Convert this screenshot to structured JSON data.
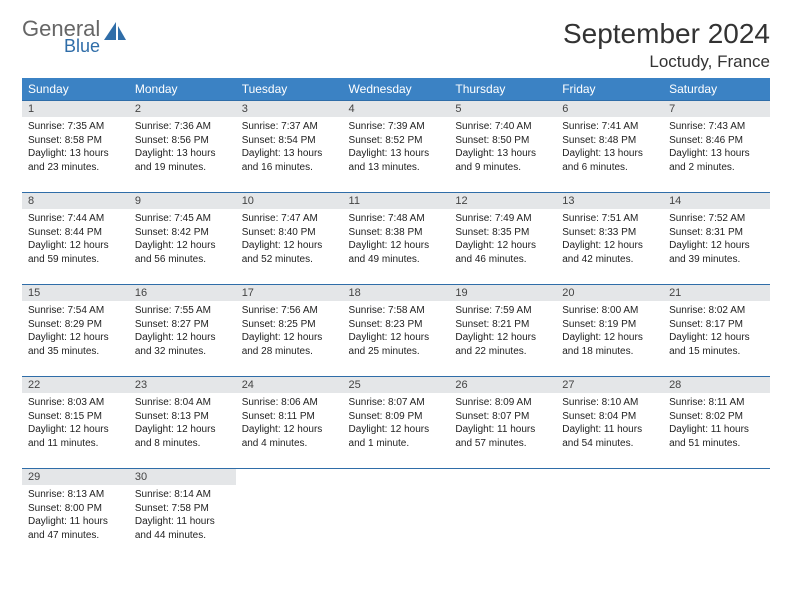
{
  "logo": {
    "word1": "General",
    "word2": "Blue"
  },
  "title": "September 2024",
  "location": "Loctudy, France",
  "colors": {
    "header_bg": "#3b82c4",
    "header_fg": "#ffffff",
    "daynum_bg": "#e4e6e8",
    "border": "#2f6da8",
    "logo_gray": "#666666",
    "logo_blue": "#2f6da8"
  },
  "weekdays": [
    "Sunday",
    "Monday",
    "Tuesday",
    "Wednesday",
    "Thursday",
    "Friday",
    "Saturday"
  ],
  "weeks": [
    [
      {
        "n": "1",
        "sunrise": "Sunrise: 7:35 AM",
        "sunset": "Sunset: 8:58 PM",
        "day1": "Daylight: 13 hours",
        "day2": "and 23 minutes."
      },
      {
        "n": "2",
        "sunrise": "Sunrise: 7:36 AM",
        "sunset": "Sunset: 8:56 PM",
        "day1": "Daylight: 13 hours",
        "day2": "and 19 minutes."
      },
      {
        "n": "3",
        "sunrise": "Sunrise: 7:37 AM",
        "sunset": "Sunset: 8:54 PM",
        "day1": "Daylight: 13 hours",
        "day2": "and 16 minutes."
      },
      {
        "n": "4",
        "sunrise": "Sunrise: 7:39 AM",
        "sunset": "Sunset: 8:52 PM",
        "day1": "Daylight: 13 hours",
        "day2": "and 13 minutes."
      },
      {
        "n": "5",
        "sunrise": "Sunrise: 7:40 AM",
        "sunset": "Sunset: 8:50 PM",
        "day1": "Daylight: 13 hours",
        "day2": "and 9 minutes."
      },
      {
        "n": "6",
        "sunrise": "Sunrise: 7:41 AM",
        "sunset": "Sunset: 8:48 PM",
        "day1": "Daylight: 13 hours",
        "day2": "and 6 minutes."
      },
      {
        "n": "7",
        "sunrise": "Sunrise: 7:43 AM",
        "sunset": "Sunset: 8:46 PM",
        "day1": "Daylight: 13 hours",
        "day2": "and 2 minutes."
      }
    ],
    [
      {
        "n": "8",
        "sunrise": "Sunrise: 7:44 AM",
        "sunset": "Sunset: 8:44 PM",
        "day1": "Daylight: 12 hours",
        "day2": "and 59 minutes."
      },
      {
        "n": "9",
        "sunrise": "Sunrise: 7:45 AM",
        "sunset": "Sunset: 8:42 PM",
        "day1": "Daylight: 12 hours",
        "day2": "and 56 minutes."
      },
      {
        "n": "10",
        "sunrise": "Sunrise: 7:47 AM",
        "sunset": "Sunset: 8:40 PM",
        "day1": "Daylight: 12 hours",
        "day2": "and 52 minutes."
      },
      {
        "n": "11",
        "sunrise": "Sunrise: 7:48 AM",
        "sunset": "Sunset: 8:38 PM",
        "day1": "Daylight: 12 hours",
        "day2": "and 49 minutes."
      },
      {
        "n": "12",
        "sunrise": "Sunrise: 7:49 AM",
        "sunset": "Sunset: 8:35 PM",
        "day1": "Daylight: 12 hours",
        "day2": "and 46 minutes."
      },
      {
        "n": "13",
        "sunrise": "Sunrise: 7:51 AM",
        "sunset": "Sunset: 8:33 PM",
        "day1": "Daylight: 12 hours",
        "day2": "and 42 minutes."
      },
      {
        "n": "14",
        "sunrise": "Sunrise: 7:52 AM",
        "sunset": "Sunset: 8:31 PM",
        "day1": "Daylight: 12 hours",
        "day2": "and 39 minutes."
      }
    ],
    [
      {
        "n": "15",
        "sunrise": "Sunrise: 7:54 AM",
        "sunset": "Sunset: 8:29 PM",
        "day1": "Daylight: 12 hours",
        "day2": "and 35 minutes."
      },
      {
        "n": "16",
        "sunrise": "Sunrise: 7:55 AM",
        "sunset": "Sunset: 8:27 PM",
        "day1": "Daylight: 12 hours",
        "day2": "and 32 minutes."
      },
      {
        "n": "17",
        "sunrise": "Sunrise: 7:56 AM",
        "sunset": "Sunset: 8:25 PM",
        "day1": "Daylight: 12 hours",
        "day2": "and 28 minutes."
      },
      {
        "n": "18",
        "sunrise": "Sunrise: 7:58 AM",
        "sunset": "Sunset: 8:23 PM",
        "day1": "Daylight: 12 hours",
        "day2": "and 25 minutes."
      },
      {
        "n": "19",
        "sunrise": "Sunrise: 7:59 AM",
        "sunset": "Sunset: 8:21 PM",
        "day1": "Daylight: 12 hours",
        "day2": "and 22 minutes."
      },
      {
        "n": "20",
        "sunrise": "Sunrise: 8:00 AM",
        "sunset": "Sunset: 8:19 PM",
        "day1": "Daylight: 12 hours",
        "day2": "and 18 minutes."
      },
      {
        "n": "21",
        "sunrise": "Sunrise: 8:02 AM",
        "sunset": "Sunset: 8:17 PM",
        "day1": "Daylight: 12 hours",
        "day2": "and 15 minutes."
      }
    ],
    [
      {
        "n": "22",
        "sunrise": "Sunrise: 8:03 AM",
        "sunset": "Sunset: 8:15 PM",
        "day1": "Daylight: 12 hours",
        "day2": "and 11 minutes."
      },
      {
        "n": "23",
        "sunrise": "Sunrise: 8:04 AM",
        "sunset": "Sunset: 8:13 PM",
        "day1": "Daylight: 12 hours",
        "day2": "and 8 minutes."
      },
      {
        "n": "24",
        "sunrise": "Sunrise: 8:06 AM",
        "sunset": "Sunset: 8:11 PM",
        "day1": "Daylight: 12 hours",
        "day2": "and 4 minutes."
      },
      {
        "n": "25",
        "sunrise": "Sunrise: 8:07 AM",
        "sunset": "Sunset: 8:09 PM",
        "day1": "Daylight: 12 hours",
        "day2": "and 1 minute."
      },
      {
        "n": "26",
        "sunrise": "Sunrise: 8:09 AM",
        "sunset": "Sunset: 8:07 PM",
        "day1": "Daylight: 11 hours",
        "day2": "and 57 minutes."
      },
      {
        "n": "27",
        "sunrise": "Sunrise: 8:10 AM",
        "sunset": "Sunset: 8:04 PM",
        "day1": "Daylight: 11 hours",
        "day2": "and 54 minutes."
      },
      {
        "n": "28",
        "sunrise": "Sunrise: 8:11 AM",
        "sunset": "Sunset: 8:02 PM",
        "day1": "Daylight: 11 hours",
        "day2": "and 51 minutes."
      }
    ],
    [
      {
        "n": "29",
        "sunrise": "Sunrise: 8:13 AM",
        "sunset": "Sunset: 8:00 PM",
        "day1": "Daylight: 11 hours",
        "day2": "and 47 minutes."
      },
      {
        "n": "30",
        "sunrise": "Sunrise: 8:14 AM",
        "sunset": "Sunset: 7:58 PM",
        "day1": "Daylight: 11 hours",
        "day2": "and 44 minutes."
      },
      null,
      null,
      null,
      null,
      null
    ]
  ]
}
